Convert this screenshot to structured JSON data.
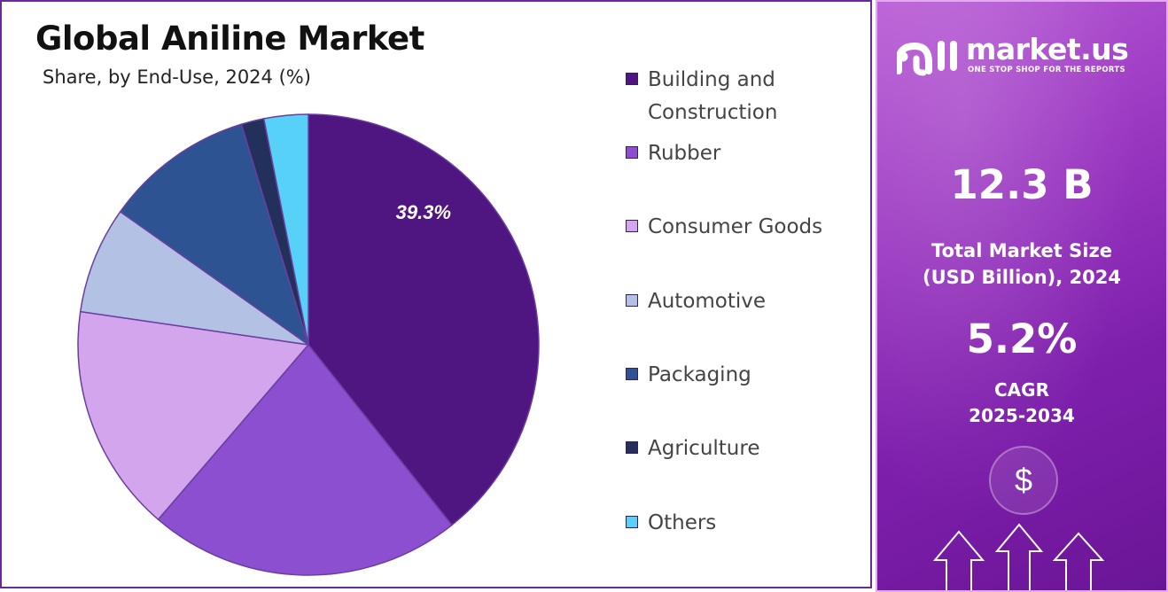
{
  "chart_data": {
    "type": "pie",
    "title": "Global Aniline Market",
    "subtitle": "Share, by End-Use, 2024 (%)",
    "categories": [
      "Building and Construction",
      "Rubber",
      "Consumer Goods",
      "Automotive",
      "Packaging",
      "Agriculture",
      "Others"
    ],
    "values": [
      39.3,
      22.0,
      16.0,
      7.5,
      10.5,
      1.6,
      3.1
    ],
    "colors": [
      "#4f1581",
      "#8b4fcf",
      "#d3a5ec",
      "#b2c1e4",
      "#2e5392",
      "#23305c",
      "#57d1f8"
    ],
    "data_labels": [
      "39.3%",
      "",
      "",
      "",
      "",
      "",
      ""
    ],
    "legend_position": "right"
  },
  "info": {
    "brand_name": "market.us",
    "brand_tagline": "ONE STOP SHOP FOR THE REPORTS",
    "market_size_value": "12.3 B",
    "market_size_label_1": "Total Market Size",
    "market_size_label_2": "(USD Billion), 2024",
    "cagr_value": "5.2%",
    "cagr_label_1": "CAGR",
    "cagr_label_2": "2025-2034",
    "dollar_symbol": "$"
  },
  "icons": [
    "market-us-logo-icon",
    "dollar-coin-icon",
    "up-arrow-icon"
  ]
}
